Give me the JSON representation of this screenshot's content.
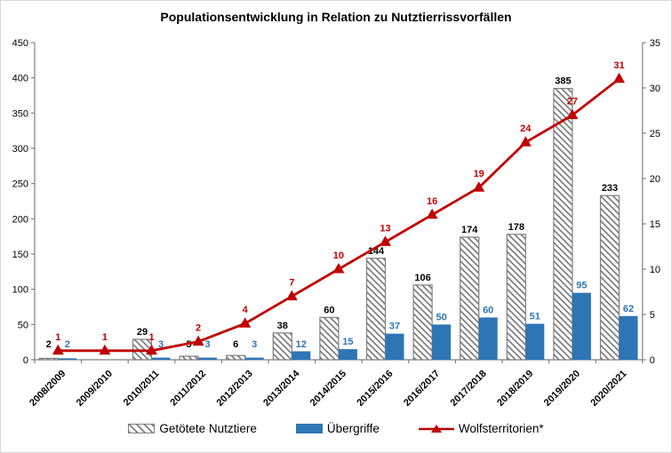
{
  "title": "Populationsentwicklung in Relation zu Nutztierrissvorfällen",
  "chart_data": {
    "type": "combo-bar-line",
    "title": "Populationsentwicklung in Relation zu Nutztierrissvorfällen",
    "categories": [
      "2008/2009",
      "2009/2010",
      "2010/2011",
      "2011/2012",
      "2012/2013",
      "2013/2014",
      "2014/2015",
      "2015/2016",
      "2016/2017",
      "2017/2018",
      "2018/2019",
      "2019/2020",
      "2020/2021"
    ],
    "series": [
      {
        "name": "Getötete Nutztiere",
        "kind": "bar",
        "axis": "left",
        "fill": "white-with-gray-diagonal-hatch",
        "label_color": "#000000",
        "values": [
          2,
          null,
          29,
          5,
          6,
          38,
          60,
          144,
          106,
          174,
          178,
          385,
          233
        ]
      },
      {
        "name": "Übergriffe",
        "kind": "bar",
        "axis": "left",
        "color": "#2E75B6",
        "label_color": "#2E75B6",
        "values": [
          2,
          null,
          3,
          3,
          3,
          12,
          15,
          37,
          50,
          60,
          51,
          95,
          62
        ]
      },
      {
        "name": "Wolfsterritorien*",
        "kind": "line",
        "axis": "right",
        "color": "#C00000",
        "marker": "triangle-up",
        "label_color": "#C00000",
        "values": [
          1,
          1,
          1,
          2,
          4,
          7,
          10,
          13,
          16,
          19,
          24,
          27,
          31
        ]
      }
    ],
    "left_axis": {
      "min": 0,
      "max": 450,
      "step": 50,
      "ticks": [
        0,
        50,
        100,
        150,
        200,
        250,
        300,
        350,
        400,
        450
      ]
    },
    "right_axis": {
      "min": 0,
      "max": 35,
      "step": 5,
      "ticks": [
        0,
        5,
        10,
        15,
        20,
        25,
        30,
        35
      ]
    },
    "gridlines": false,
    "data_labels": true,
    "legend_position": "bottom"
  },
  "colors": {
    "hatch_gray": "#7F7F7F",
    "bar_blue": "#2E75B6",
    "line_red": "#C00000",
    "axis_gray": "#808080",
    "text_black": "#000000",
    "background": "#FFFFFF"
  }
}
